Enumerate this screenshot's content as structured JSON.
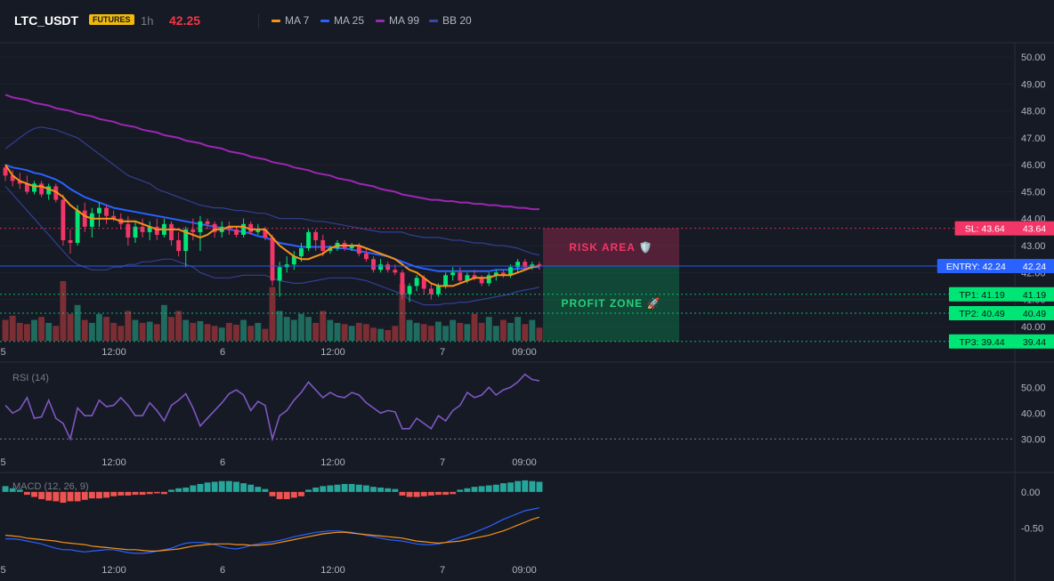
{
  "header": {
    "symbol": "LTC_USDT",
    "badge": "FUTURES",
    "timeframe": "1h",
    "last_price": "42.25",
    "legend": [
      {
        "name": "MA 7",
        "color": "#f7931a"
      },
      {
        "name": "MA 25",
        "color": "#2962ff"
      },
      {
        "name": "MA 99",
        "color": "#9c27b0"
      },
      {
        "name": "BB 20",
        "color": "#3949ab"
      }
    ]
  },
  "colors": {
    "up": "#26a69a",
    "down": "#ef5350",
    "up_candle": "#00e676",
    "down_candle": "#f23667",
    "grid": "#2a2e39",
    "text": "#b2b5be"
  },
  "zones": {
    "risk_label": "RISK AREA 🛡️",
    "profit_label": "PROFIT ZONE 🚀"
  },
  "x_labels": [
    "5",
    "12:00",
    "6",
    "12:00",
    "7",
    "09:00"
  ],
  "chart_data": [
    {
      "type": "candlestick",
      "title": "LTC_USDT",
      "ylim": [
        39.4,
        50.4
      ],
      "y_ticks": [
        "50.00",
        "49.00",
        "48.00",
        "47.00",
        "46.00",
        "45.00",
        "44.00",
        "43.00",
        "42.00",
        "41.00",
        "40.00"
      ],
      "candles": [
        [
          45.9,
          46.0,
          45.4,
          45.6
        ],
        [
          45.6,
          45.8,
          45.2,
          45.4
        ],
        [
          45.4,
          45.7,
          45.1,
          45.3
        ],
        [
          45.3,
          45.6,
          44.9,
          45.0
        ],
        [
          45.0,
          45.4,
          44.9,
          45.3
        ],
        [
          45.3,
          45.4,
          44.8,
          44.9
        ],
        [
          44.9,
          45.3,
          44.7,
          45.2
        ],
        [
          45.2,
          45.3,
          44.6,
          44.7
        ],
        [
          44.7,
          44.9,
          43.0,
          43.2
        ],
        [
          43.2,
          43.6,
          42.7,
          43.1
        ],
        [
          43.1,
          44.5,
          43.0,
          44.3
        ],
        [
          44.3,
          44.6,
          43.5,
          43.7
        ],
        [
          43.7,
          44.4,
          43.3,
          44.2
        ],
        [
          44.2,
          44.6,
          43.7,
          44.4
        ],
        [
          44.4,
          44.5,
          43.8,
          44.1
        ],
        [
          44.1,
          44.3,
          43.9,
          44.0
        ],
        [
          44.0,
          44.2,
          43.6,
          43.8
        ],
        [
          43.8,
          44.1,
          43.0,
          43.3
        ],
        [
          43.3,
          43.9,
          43.1,
          43.7
        ],
        [
          43.7,
          44.0,
          43.3,
          43.5
        ],
        [
          43.5,
          43.9,
          43.2,
          43.7
        ],
        [
          43.7,
          44.0,
          43.2,
          43.4
        ],
        [
          43.4,
          44.0,
          43.3,
          43.8
        ],
        [
          43.8,
          43.9,
          43.0,
          43.2
        ],
        [
          43.2,
          43.5,
          42.6,
          42.8
        ],
        [
          42.8,
          43.7,
          42.2,
          43.6
        ],
        [
          43.6,
          44.0,
          43.2,
          43.5
        ],
        [
          43.5,
          44.1,
          42.8,
          43.9
        ],
        [
          43.9,
          44.0,
          43.6,
          43.8
        ],
        [
          43.8,
          43.9,
          43.3,
          43.5
        ],
        [
          43.5,
          43.9,
          43.3,
          43.7
        ],
        [
          43.7,
          43.9,
          43.4,
          43.6
        ],
        [
          43.6,
          43.7,
          43.3,
          43.4
        ],
        [
          43.4,
          44.0,
          43.3,
          43.8
        ],
        [
          43.8,
          43.9,
          43.4,
          43.5
        ],
        [
          43.5,
          43.8,
          43.4,
          43.6
        ],
        [
          43.6,
          43.7,
          43.2,
          43.3
        ],
        [
          43.3,
          43.4,
          41.5,
          41.7
        ],
        [
          41.7,
          42.4,
          41.1,
          42.2
        ],
        [
          42.2,
          42.6,
          42.0,
          42.3
        ],
        [
          42.3,
          42.8,
          42.1,
          42.6
        ],
        [
          42.6,
          43.1,
          42.4,
          42.9
        ],
        [
          42.9,
          43.6,
          42.8,
          43.5
        ],
        [
          43.5,
          43.6,
          42.8,
          43.2
        ],
        [
          43.2,
          43.4,
          42.6,
          42.8
        ],
        [
          42.8,
          43.0,
          42.7,
          42.9
        ],
        [
          42.9,
          43.2,
          42.8,
          43.1
        ],
        [
          43.1,
          43.2,
          42.8,
          42.9
        ],
        [
          42.9,
          43.1,
          42.8,
          43.0
        ],
        [
          43.0,
          43.1,
          42.6,
          42.7
        ],
        [
          42.7,
          42.9,
          42.4,
          42.5
        ],
        [
          42.5,
          42.6,
          42.0,
          42.1
        ],
        [
          42.1,
          42.5,
          42.0,
          42.3
        ],
        [
          42.3,
          42.4,
          42.0,
          42.1
        ],
        [
          42.1,
          42.3,
          41.9,
          42.0
        ],
        [
          42.0,
          42.1,
          41.0,
          41.2
        ],
        [
          41.2,
          41.6,
          40.9,
          41.5
        ],
        [
          41.5,
          41.9,
          41.3,
          41.8
        ],
        [
          41.8,
          41.9,
          41.2,
          41.4
        ],
        [
          41.4,
          41.6,
          41.0,
          41.2
        ],
        [
          41.2,
          41.6,
          41.1,
          41.5
        ],
        [
          41.5,
          42.0,
          41.4,
          41.9
        ],
        [
          41.9,
          42.2,
          41.7,
          42.0
        ],
        [
          42.0,
          42.2,
          41.6,
          41.7
        ],
        [
          41.7,
          42.0,
          41.6,
          41.9
        ],
        [
          41.9,
          42.1,
          41.7,
          41.8
        ],
        [
          41.8,
          41.9,
          41.5,
          41.6
        ],
        [
          41.6,
          42.0,
          41.5,
          41.9
        ],
        [
          41.9,
          42.1,
          41.7,
          42.0
        ],
        [
          42.0,
          42.1,
          41.8,
          41.9
        ],
        [
          41.9,
          42.3,
          41.8,
          42.2
        ],
        [
          42.2,
          42.5,
          42.0,
          42.4
        ],
        [
          42.4,
          42.5,
          42.1,
          42.2
        ],
        [
          42.2,
          42.4,
          42.1,
          42.3
        ],
        [
          42.3,
          42.4,
          42.1,
          42.25
        ]
      ],
      "volume": [
        0.35,
        0.42,
        0.3,
        0.28,
        0.35,
        0.4,
        0.3,
        0.25,
        1.0,
        0.45,
        0.6,
        0.35,
        0.3,
        0.45,
        0.4,
        0.3,
        0.25,
        0.5,
        0.35,
        0.3,
        0.32,
        0.28,
        0.6,
        0.4,
        0.5,
        0.35,
        0.3,
        0.33,
        0.28,
        0.25,
        0.22,
        0.3,
        0.27,
        0.35,
        0.25,
        0.3,
        0.2,
        0.9,
        0.5,
        0.4,
        0.35,
        0.45,
        0.4,
        0.3,
        0.5,
        0.35,
        0.3,
        0.28,
        0.25,
        0.3,
        0.28,
        0.22,
        0.2,
        0.18,
        0.25,
        0.95,
        0.35,
        0.3,
        0.28,
        0.25,
        0.32,
        0.25,
        0.35,
        0.3,
        0.28,
        0.45,
        0.3,
        0.4,
        0.25,
        0.35,
        0.3,
        0.4,
        0.28,
        0.35,
        0.22
      ],
      "ma7": [
        46.0,
        45.6,
        45.4,
        45.3,
        45.2,
        45.2,
        45.1,
        45.0,
        44.8,
        44.5,
        44.3,
        44.1,
        44.0,
        44.0,
        44.0,
        44.0,
        43.9,
        43.9,
        43.9,
        43.8,
        43.7,
        43.6,
        43.6,
        43.6,
        43.6,
        43.5,
        43.4,
        43.3,
        43.4,
        43.6,
        43.6,
        43.7,
        43.7,
        43.7,
        43.6,
        43.6,
        43.6,
        43.3,
        43.0,
        42.8,
        42.6,
        42.5,
        42.5,
        42.6,
        42.7,
        42.9,
        43.0,
        43.0,
        43.0,
        43.0,
        42.9,
        42.8,
        42.7,
        42.6,
        42.5,
        42.3,
        42.1,
        42.0,
        41.8,
        41.6,
        41.5,
        41.5,
        41.5,
        41.6,
        41.7,
        41.8,
        41.8,
        41.8,
        41.9,
        41.9,
        41.9,
        42.0,
        42.1,
        42.2,
        42.25
      ],
      "ma25": [
        46.0,
        45.9,
        45.85,
        45.8,
        45.7,
        45.65,
        45.55,
        45.45,
        45.3,
        45.1,
        44.95,
        44.8,
        44.7,
        44.6,
        44.5,
        44.4,
        44.35,
        44.3,
        44.25,
        44.2,
        44.15,
        44.1,
        44.05,
        44.0,
        43.95,
        43.9,
        43.85,
        43.8,
        43.75,
        43.7,
        43.65,
        43.6,
        43.55,
        43.5,
        43.45,
        43.35,
        43.3,
        43.2,
        43.1,
        43.05,
        43.0,
        42.95,
        42.95,
        42.95,
        42.95,
        42.95,
        42.9,
        42.9,
        42.85,
        42.8,
        42.75,
        42.7,
        42.65,
        42.6,
        42.5,
        42.4,
        42.3,
        42.2,
        42.15,
        42.1,
        42.05,
        42.05,
        42.05,
        42.05,
        42.05,
        42.05,
        42.05,
        42.05,
        42.1,
        42.1,
        42.1,
        42.15,
        42.15,
        42.2,
        42.2
      ],
      "ma99": [
        48.6,
        48.5,
        48.45,
        48.4,
        48.3,
        48.25,
        48.2,
        48.1,
        48.05,
        48.0,
        47.9,
        47.85,
        47.8,
        47.7,
        47.65,
        47.6,
        47.5,
        47.45,
        47.4,
        47.3,
        47.25,
        47.2,
        47.1,
        47.05,
        47.0,
        46.9,
        46.85,
        46.8,
        46.7,
        46.65,
        46.6,
        46.5,
        46.45,
        46.4,
        46.3,
        46.25,
        46.2,
        46.1,
        46.05,
        46.0,
        45.9,
        45.85,
        45.8,
        45.7,
        45.65,
        45.6,
        45.5,
        45.45,
        45.4,
        45.3,
        45.25,
        45.2,
        45.1,
        45.05,
        45.0,
        44.9,
        44.85,
        44.8,
        44.75,
        44.7,
        44.7,
        44.65,
        44.65,
        44.6,
        44.6,
        44.55,
        44.55,
        44.5,
        44.5,
        44.45,
        44.45,
        44.4,
        44.4,
        44.35,
        44.35
      ],
      "bb_upper": [
        46.6,
        46.8,
        47.0,
        47.2,
        47.35,
        47.4,
        47.35,
        47.3,
        47.2,
        47.1,
        47.0,
        46.8,
        46.6,
        46.4,
        46.2,
        46.0,
        45.8,
        45.6,
        45.5,
        45.4,
        45.3,
        45.1,
        45.0,
        44.9,
        44.8,
        44.7,
        44.6,
        44.5,
        44.45,
        44.4,
        44.4,
        44.35,
        44.3,
        44.3,
        44.25,
        44.2,
        44.2,
        44.1,
        44.0,
        44.0,
        44.0,
        44.0,
        43.95,
        43.9,
        43.9,
        43.85,
        43.8,
        43.75,
        43.7,
        43.65,
        43.6,
        43.55,
        43.5,
        43.5,
        43.5,
        43.5,
        43.4,
        43.35,
        43.3,
        43.3,
        43.3,
        43.25,
        43.2,
        43.2,
        43.15,
        43.1,
        43.1,
        43.05,
        43.0,
        43.0,
        42.95,
        42.9,
        42.8,
        42.7,
        42.65
      ],
      "bb_lower": [
        45.2,
        44.9,
        44.6,
        44.3,
        44.0,
        43.7,
        43.4,
        43.1,
        42.8,
        42.5,
        42.3,
        42.2,
        42.1,
        42.1,
        42.1,
        42.2,
        42.2,
        42.3,
        42.3,
        42.4,
        42.4,
        42.45,
        42.5,
        42.5,
        42.4,
        42.3,
        42.2,
        42.0,
        41.9,
        41.8,
        41.8,
        41.8,
        41.85,
        41.9,
        41.9,
        41.9,
        41.9,
        41.8,
        41.7,
        41.65,
        41.6,
        41.6,
        41.65,
        41.7,
        41.75,
        41.8,
        41.8,
        41.8,
        41.8,
        41.75,
        41.7,
        41.6,
        41.5,
        41.4,
        41.3,
        41.2,
        41.0,
        40.9,
        40.8,
        40.8,
        40.8,
        40.85,
        40.85,
        40.9,
        40.9,
        40.95,
        41.0,
        41.05,
        41.1,
        41.15,
        41.2,
        41.3,
        41.35,
        41.4,
        41.45
      ],
      "levels": [
        {
          "label": "SL: 43.64",
          "price_label": "43.64",
          "value": 43.64,
          "color": "#f23667"
        },
        {
          "label": "ENTRY: 42.24",
          "price_label": "42.24",
          "value": 42.24,
          "color": "#2962ff"
        },
        {
          "label": "TP1: 41.19",
          "price_label": "41.19",
          "value": 41.19,
          "color": "#00e676"
        },
        {
          "label": "TP2: 40.49",
          "price_label": "40.49",
          "value": 40.49,
          "color": "#00e676"
        },
        {
          "label": "TP3: 39.44",
          "price_label": "39.44",
          "value": 39.44,
          "color": "#00e676"
        }
      ]
    },
    {
      "type": "line",
      "title": "RSI (14)",
      "ylim": [
        26,
        58
      ],
      "y_ticks": [
        "50.00",
        "40.00",
        "30.00"
      ],
      "guide": 30,
      "values": [
        43,
        40,
        41.5,
        46,
        38,
        38.5,
        45,
        38,
        36,
        30,
        42,
        39,
        39,
        45,
        42.5,
        43,
        46,
        43,
        39,
        39,
        44,
        41,
        37,
        43,
        45,
        47.5,
        42,
        35,
        38,
        41,
        44,
        47.5,
        49,
        47,
        41,
        44.5,
        43,
        30,
        39,
        41,
        45,
        48,
        52,
        49,
        46,
        48,
        46.5,
        46,
        48,
        47,
        44,
        42,
        40,
        41,
        40.5,
        34,
        34,
        38,
        36,
        34,
        39,
        37,
        41,
        43,
        48,
        46,
        47,
        50,
        47,
        49,
        50,
        52,
        55,
        53,
        52.5
      ]
    },
    {
      "type": "histogram+line",
      "title": "MACD (12, 26, 9)",
      "ylim": [
        -0.95,
        0.22
      ],
      "y_ticks": [
        "0.00",
        "-0.50"
      ],
      "histogram": [
        0.08,
        0.05,
        0.03,
        -0.04,
        -0.07,
        -0.1,
        -0.12,
        -0.13,
        -0.15,
        -0.13,
        -0.13,
        -0.11,
        -0.09,
        -0.09,
        -0.08,
        -0.06,
        -0.05,
        -0.05,
        -0.04,
        -0.04,
        -0.03,
        -0.02,
        -0.03,
        0.03,
        0.05,
        0.06,
        0.09,
        0.11,
        0.13,
        0.14,
        0.15,
        0.15,
        0.14,
        0.12,
        0.1,
        0.07,
        0.04,
        -0.06,
        -0.1,
        -0.1,
        -0.08,
        -0.06,
        0.03,
        0.06,
        0.08,
        0.09,
        0.1,
        0.11,
        0.11,
        0.1,
        0.09,
        0.07,
        0.06,
        0.05,
        0.04,
        -0.05,
        -0.07,
        -0.07,
        -0.06,
        -0.05,
        -0.04,
        -0.04,
        -0.03,
        0.03,
        0.05,
        0.07,
        0.08,
        0.09,
        0.1,
        0.12,
        0.13,
        0.15,
        0.16,
        0.15,
        0.14
      ],
      "macd": [
        -0.65,
        -0.65,
        -0.66,
        -0.68,
        -0.7,
        -0.72,
        -0.75,
        -0.78,
        -0.8,
        -0.8,
        -0.82,
        -0.83,
        -0.82,
        -0.81,
        -0.8,
        -0.8,
        -0.82,
        -0.84,
        -0.85,
        -0.85,
        -0.84,
        -0.82,
        -0.8,
        -0.78,
        -0.74,
        -0.71,
        -0.7,
        -0.7,
        -0.71,
        -0.73,
        -0.76,
        -0.78,
        -0.79,
        -0.77,
        -0.74,
        -0.72,
        -0.7,
        -0.69,
        -0.67,
        -0.65,
        -0.62,
        -0.6,
        -0.58,
        -0.56,
        -0.55,
        -0.54,
        -0.54,
        -0.55,
        -0.56,
        -0.58,
        -0.6,
        -0.62,
        -0.64,
        -0.66,
        -0.67,
        -0.68,
        -0.7,
        -0.72,
        -0.73,
        -0.73,
        -0.72,
        -0.7,
        -0.66,
        -0.63,
        -0.6,
        -0.56,
        -0.52,
        -0.48,
        -0.43,
        -0.38,
        -0.34,
        -0.3,
        -0.26,
        -0.24,
        -0.22
      ],
      "signal": [
        -0.6,
        -0.61,
        -0.62,
        -0.64,
        -0.65,
        -0.66,
        -0.67,
        -0.68,
        -0.7,
        -0.71,
        -0.72,
        -0.73,
        -0.75,
        -0.76,
        -0.77,
        -0.78,
        -0.79,
        -0.8,
        -0.8,
        -0.81,
        -0.82,
        -0.82,
        -0.81,
        -0.8,
        -0.79,
        -0.77,
        -0.75,
        -0.74,
        -0.73,
        -0.72,
        -0.72,
        -0.72,
        -0.73,
        -0.73,
        -0.74,
        -0.74,
        -0.73,
        -0.72,
        -0.7,
        -0.68,
        -0.66,
        -0.64,
        -0.62,
        -0.6,
        -0.58,
        -0.57,
        -0.56,
        -0.56,
        -0.57,
        -0.58,
        -0.59,
        -0.6,
        -0.61,
        -0.62,
        -0.63,
        -0.64,
        -0.66,
        -0.68,
        -0.69,
        -0.7,
        -0.71,
        -0.7,
        -0.69,
        -0.68,
        -0.66,
        -0.64,
        -0.62,
        -0.6,
        -0.57,
        -0.54,
        -0.5,
        -0.46,
        -0.42,
        -0.38,
        -0.35
      ]
    }
  ]
}
